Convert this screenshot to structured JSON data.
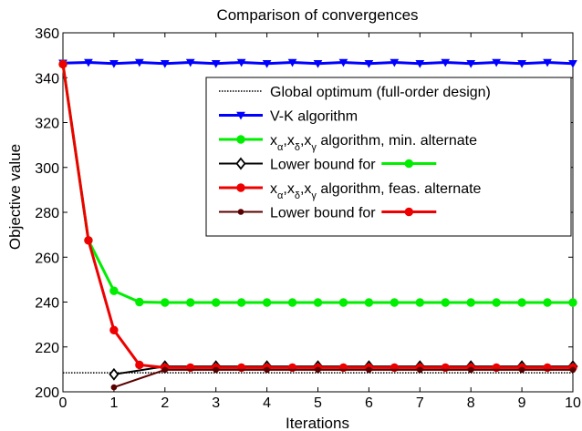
{
  "chart_data": {
    "type": "line",
    "title": "Comparison of convergences",
    "xlabel": "Iterations",
    "ylabel": "Objective value",
    "xlim": [
      0,
      10
    ],
    "ylim": [
      200,
      360
    ],
    "xticks": [
      0,
      1,
      2,
      3,
      4,
      5,
      6,
      7,
      8,
      9,
      10
    ],
    "yticks": [
      200,
      220,
      240,
      260,
      280,
      300,
      320,
      340,
      360
    ],
    "grid": false,
    "legend_position": "top-right",
    "series": [
      {
        "name": "Global optimum (full-order design)",
        "color": "#000000",
        "style": "dotted",
        "marker": "none",
        "x": [
          0,
          10
        ],
        "y": [
          208.5,
          208.5
        ]
      },
      {
        "name": "V-K algorithm",
        "color": "#0000ff",
        "style": "solid",
        "marker": "triangle-down",
        "x": [
          0,
          0.5,
          1,
          1.5,
          2,
          2.5,
          3,
          3.5,
          4,
          4.5,
          5,
          5.5,
          6,
          6.5,
          7,
          7.5,
          8,
          8.5,
          9,
          9.5,
          10
        ],
        "y": [
          346.5,
          346.8,
          346.3,
          346.8,
          346.3,
          346.8,
          346.3,
          346.8,
          346.3,
          346.8,
          346.3,
          346.8,
          346.3,
          346.8,
          346.3,
          346.8,
          346.3,
          346.8,
          346.3,
          346.8,
          346.3
        ]
      },
      {
        "name": "x_α,x_δ,x_γ algorithm, min. alternate",
        "color": "#00ee00",
        "style": "solid",
        "marker": "circle",
        "x": [
          0,
          0.5,
          1,
          1.5,
          2,
          2.5,
          3,
          3.5,
          4,
          4.5,
          5,
          5.5,
          6,
          6.5,
          7,
          7.5,
          8,
          8.5,
          9,
          9.5,
          10
        ],
        "y": [
          346,
          267.5,
          245,
          240,
          239.8,
          239.8,
          239.8,
          239.8,
          239.8,
          239.8,
          239.8,
          239.8,
          239.8,
          239.8,
          239.8,
          239.8,
          239.8,
          239.8,
          239.8,
          239.8,
          239.8
        ]
      },
      {
        "name": "Lower bound for",
        "color": "#000000",
        "style": "solid",
        "marker": "diamond",
        "x": [
          1,
          2,
          3,
          4,
          5,
          6,
          7,
          8,
          9,
          10
        ],
        "y": [
          207.8,
          211.3,
          211.3,
          211.3,
          211.3,
          211.3,
          211.3,
          211.3,
          211.3,
          211.3
        ]
      },
      {
        "name": "x_α,x_δ,x_γ algorithm, feas. alternate",
        "color": "#ee0000",
        "style": "solid",
        "marker": "circle",
        "x": [
          0,
          0.5,
          1,
          1.5,
          2,
          2.5,
          3,
          3.5,
          4,
          4.5,
          5,
          5.5,
          6,
          6.5,
          7,
          7.5,
          8,
          8.5,
          9,
          9.5,
          10
        ],
        "y": [
          346,
          267.5,
          227.5,
          212,
          210.8,
          210.8,
          210.8,
          210.8,
          210.8,
          210.8,
          210.8,
          210.8,
          210.8,
          210.8,
          210.8,
          210.8,
          210.8,
          210.8,
          210.8,
          210.8,
          210.8
        ]
      },
      {
        "name": "Lower bound for",
        "color": "#5a0000",
        "style": "solid",
        "marker": "dot",
        "x": [
          1,
          2,
          3,
          4,
          5,
          6,
          7,
          8,
          9,
          10
        ],
        "y": [
          202,
          209.8,
          209.8,
          209.8,
          209.8,
          209.8,
          209.8,
          209.8,
          209.8,
          209.8
        ]
      }
    ],
    "legend": [
      {
        "text": "Global optimum (full-order design)",
        "color": "#000000",
        "style": "dotted",
        "marker": "none"
      },
      {
        "text": "V-K algorithm",
        "color": "#0000ff",
        "style": "solid",
        "marker": "triangle-down"
      },
      {
        "text": "x_α,x_δ,x_γ algorithm, min. alternate",
        "color": "#00ee00",
        "style": "solid",
        "marker": "circle"
      },
      {
        "text": "Lower bound for",
        "color": "#000000",
        "style": "solid",
        "marker": "diamond",
        "ref_color": "#00ee00"
      },
      {
        "text": "x_α,x_δ,x_γ algorithm, feas. alternate",
        "color": "#ee0000",
        "style": "solid",
        "marker": "circle"
      },
      {
        "text": "Lower bound for",
        "color": "#5a0000",
        "style": "solid",
        "marker": "dot",
        "ref_color": "#ee0000"
      }
    ]
  }
}
